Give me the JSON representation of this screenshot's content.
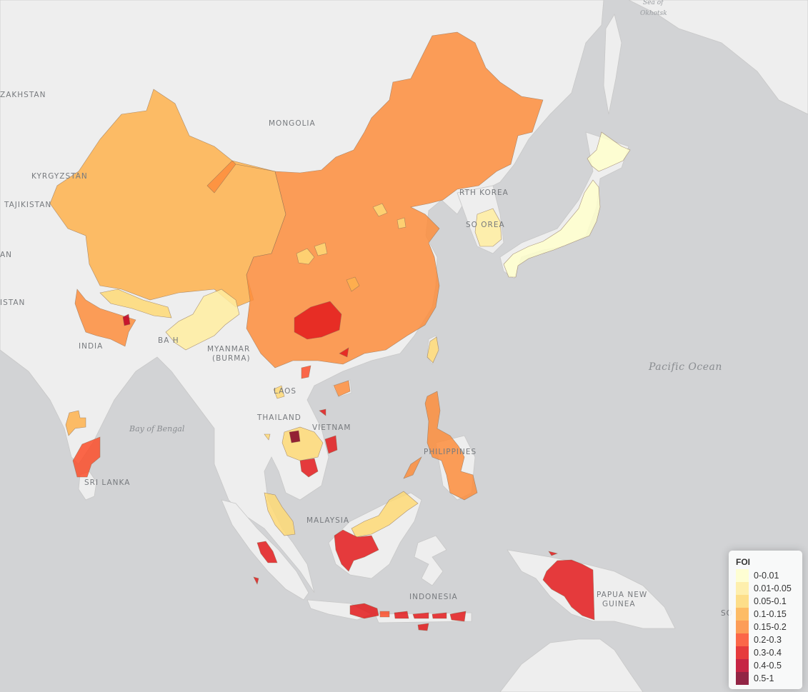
{
  "legend": {
    "title": "FOI",
    "bins": [
      {
        "label": "0-0.01",
        "color": "#ffffcc"
      },
      {
        "label": "0.01-0.05",
        "color": "#ffeda0"
      },
      {
        "label": "0.05-0.1",
        "color": "#fed976"
      },
      {
        "label": "0.1-0.15",
        "color": "#feb24c"
      },
      {
        "label": "0.15-0.2",
        "color": "#fd8d3c"
      },
      {
        "label": "0.2-0.3",
        "color": "#fc4e2a"
      },
      {
        "label": "0.3-0.4",
        "color": "#e31a1c"
      },
      {
        "label": "0.4-0.5",
        "color": "#bd0026"
      },
      {
        "label": "0.5-1",
        "color": "#800026"
      }
    ]
  },
  "labels": {
    "kazakhstan": "ZAKHSTAN",
    "mongolia": "MONGOLIA",
    "kyrgyzstan": "KYRGYZSTAN",
    "tajikistan": "TAJIKISTAN",
    "afghanistan": "AN",
    "pakistan": "ISTAN",
    "india": "INDIA",
    "bangladesh": "BA     H",
    "myanmar_1": "MYANMAR",
    "myanmar_2": "(BURMA)",
    "laos": "LAOS",
    "thailand": "THAILAND",
    "vietnam": "VIETNAM",
    "north_korea": "RTH KOREA",
    "south_korea": "SO      OREA",
    "philippines": "PHILIPPINES",
    "malaysia": "MALAYSIA",
    "indonesia": "INDONESIA",
    "png_1": "PAPUA NEW",
    "png_2": "GUINEA",
    "sri_lanka": "SRI LANKA",
    "bay_of_bengal": "Bay of Bengal",
    "pacific_ocean": "Pacific Ocean",
    "okhotsk_1": "Sea of",
    "okhotsk_2": "Okhotsk",
    "solomon": "SO"
  },
  "regions": [
    {
      "name": "Xinjiang/Tibet (China west)",
      "bin": "0.1-0.15"
    },
    {
      "name": "China (east)",
      "bin": "0.15-0.2"
    },
    {
      "name": "Guangxi",
      "bin": "0.3-0.4"
    },
    {
      "name": "Japan",
      "bin": "0-0.01"
    },
    {
      "name": "South Korea",
      "bin": "0.01-0.05"
    },
    {
      "name": "Taiwan",
      "bin": "0.05-0.1"
    },
    {
      "name": "Philippines",
      "bin": "0.15-0.2"
    },
    {
      "name": "Nepal",
      "bin": "0.05-0.1"
    },
    {
      "name": "Northern India (Uttar Pradesh/Bihar)",
      "bin": "0.15-0.2"
    },
    {
      "name": "Northeast India",
      "bin": "0.01-0.05"
    },
    {
      "name": "Tamil Nadu",
      "bin": "0.2-0.3"
    },
    {
      "name": "Goa/Karnataka spots",
      "bin": "0.1-0.15"
    },
    {
      "name": "Cambodia",
      "bin": "0.05-0.1"
    },
    {
      "name": "Cambodia (central spot)",
      "bin": "0.5-1"
    },
    {
      "name": "Southern Vietnam",
      "bin": "0.3-0.4"
    },
    {
      "name": "Peninsular Malaysia",
      "bin": "0.05-0.1"
    },
    {
      "name": "Sarawak/Sabah",
      "bin": "0.05-0.1"
    },
    {
      "name": "West Kalimantan",
      "bin": "0.3-0.4"
    },
    {
      "name": "Sumatra (west coast)",
      "bin": "0.3-0.4"
    },
    {
      "name": "Java & Lesser Sunda",
      "bin": "0.3-0.4"
    },
    {
      "name": "Papua",
      "bin": "0.3-0.4"
    }
  ]
}
